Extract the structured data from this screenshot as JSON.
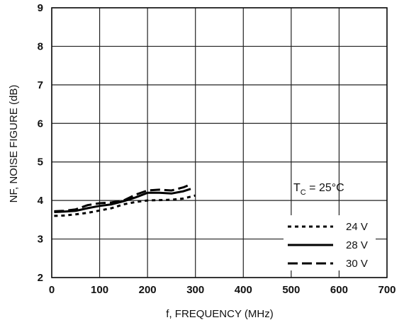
{
  "chart_data": {
    "type": "line",
    "xlabel": "f, FREQUENCY (MHz)",
    "ylabel": "NF, NOISE FIGURE (dB)",
    "xlim": [
      0,
      700
    ],
    "ylim": [
      2,
      9
    ],
    "x_ticks": [
      "0",
      "100",
      "200",
      "300",
      "400",
      "500",
      "600",
      "700"
    ],
    "y_ticks": [
      "2",
      "3",
      "4",
      "5",
      "6",
      "7",
      "8",
      "9"
    ],
    "grid": true,
    "annotation": {
      "main": "T",
      "sub": "C",
      "rest": " = 25°C"
    },
    "legend_position": "bottom-right",
    "series": [
      {
        "name": "24 V",
        "style": "dotted",
        "x": [
          5,
          25,
          50,
          75,
          100,
          125,
          150,
          175,
          200,
          225,
          250,
          275,
          300
        ],
        "y": [
          3.6,
          3.61,
          3.64,
          3.68,
          3.74,
          3.8,
          3.9,
          3.96,
          4.0,
          4.01,
          4.02,
          4.05,
          4.13
        ]
      },
      {
        "name": "28 V",
        "style": "solid",
        "x": [
          5,
          25,
          50,
          75,
          100,
          125,
          150,
          175,
          200,
          225,
          250,
          275,
          290
        ],
        "y": [
          3.7,
          3.71,
          3.73,
          3.8,
          3.86,
          3.9,
          3.98,
          4.08,
          4.2,
          4.2,
          4.18,
          4.24,
          4.3
        ]
      },
      {
        "name": "30 V",
        "style": "dashed",
        "x": [
          5,
          25,
          50,
          75,
          100,
          125,
          150,
          175,
          200,
          225,
          250,
          275,
          290
        ],
        "y": [
          3.72,
          3.73,
          3.77,
          3.88,
          3.93,
          3.95,
          4.0,
          4.15,
          4.26,
          4.28,
          4.26,
          4.34,
          4.42
        ]
      }
    ]
  }
}
